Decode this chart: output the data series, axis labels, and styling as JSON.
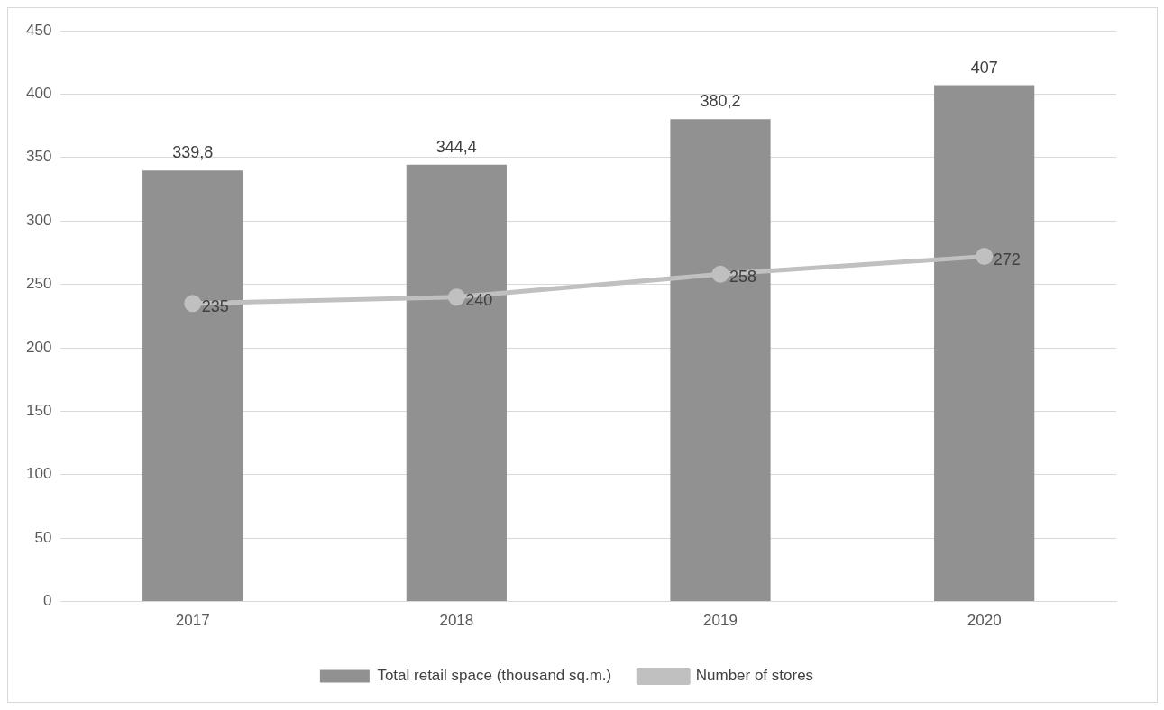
{
  "chart_data": {
    "type": "bar",
    "categories": [
      "2017",
      "2018",
      "2019",
      "2020"
    ],
    "series": [
      {
        "name": "Total retail space (thousand sq.m.)",
        "color": "#919191",
        "values": [
          339.8,
          344.4,
          380.2,
          407
        ],
        "value_labels": [
          "339,8",
          "344,4",
          "380,2",
          "407"
        ]
      },
      {
        "name": "Number of stores",
        "type": "line",
        "color": "#c0c0c0",
        "values": [
          235,
          240,
          258,
          272
        ],
        "value_labels": [
          "235",
          "240",
          "258",
          "272"
        ]
      }
    ],
    "ylim": [
      0,
      450
    ],
    "yticks": [
      0,
      50,
      100,
      150,
      200,
      250,
      300,
      350,
      400,
      450
    ],
    "grid": "y",
    "legend": "bottom",
    "marker": "circle",
    "line_style": "solid"
  }
}
